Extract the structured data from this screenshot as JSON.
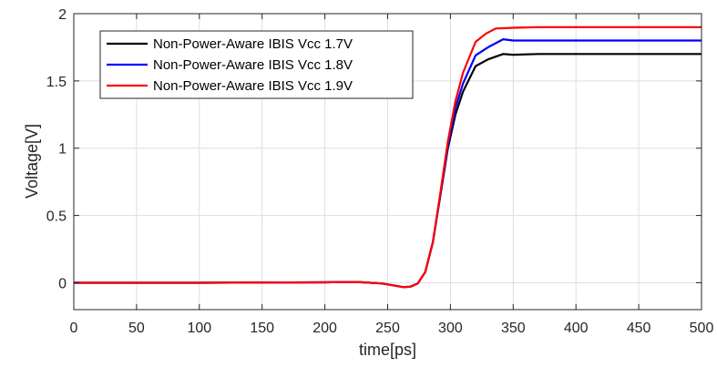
{
  "chart_data": {
    "type": "line",
    "title": "",
    "xlabel": "time[ps]",
    "ylabel": "Voltage[V]",
    "xlim": [
      0,
      500
    ],
    "ylim": [
      -0.2,
      2
    ],
    "xticks": [
      0,
      50,
      100,
      150,
      200,
      250,
      300,
      350,
      400,
      450,
      500
    ],
    "yticks": [
      0,
      0.5,
      1,
      1.5,
      2
    ],
    "xtick_labels": [
      "0",
      "50",
      "100",
      "150",
      "200",
      "250",
      "300",
      "350",
      "400",
      "450",
      "500"
    ],
    "ytick_labels": [
      "0",
      "0.5",
      "1",
      "1.5",
      "2"
    ],
    "grid": true,
    "legend_position": "top-left",
    "series": [
      {
        "name": "Non-Power-Aware IBIS Vcc 1.7V",
        "color": "#000000",
        "x": [
          0,
          100,
          200,
          225,
          245,
          255,
          262,
          268,
          274,
          280,
          286,
          292,
          298,
          304,
          310,
          320,
          330,
          342,
          350,
          370,
          400,
          450,
          500
        ],
        "y": [
          0,
          0,
          0.003,
          0.006,
          -0.005,
          -0.02,
          -0.032,
          -0.03,
          -0.005,
          0.08,
          0.3,
          0.65,
          1.0,
          1.25,
          1.42,
          1.61,
          1.66,
          1.7,
          1.695,
          1.7,
          1.7,
          1.7,
          1.7
        ]
      },
      {
        "name": "Non-Power-Aware IBIS Vcc 1.8V",
        "color": "#0000ff",
        "x": [
          0,
          100,
          200,
          225,
          245,
          255,
          262,
          268,
          274,
          280,
          286,
          292,
          298,
          304,
          310,
          320,
          330,
          342,
          350,
          370,
          400,
          450,
          500
        ],
        "y": [
          0,
          0,
          0.003,
          0.006,
          -0.005,
          -0.02,
          -0.032,
          -0.03,
          -0.005,
          0.08,
          0.3,
          0.66,
          1.02,
          1.3,
          1.48,
          1.69,
          1.75,
          1.81,
          1.8,
          1.8,
          1.8,
          1.8,
          1.8
        ]
      },
      {
        "name": "Non-Power-Aware IBIS Vcc 1.9V",
        "color": "#ff0000",
        "x": [
          0,
          100,
          200,
          225,
          245,
          255,
          262,
          268,
          274,
          280,
          286,
          292,
          298,
          304,
          310,
          320,
          328,
          336,
          350,
          370,
          400,
          450,
          500
        ],
        "y": [
          0,
          0,
          0.003,
          0.006,
          -0.005,
          -0.02,
          -0.032,
          -0.03,
          -0.005,
          0.08,
          0.3,
          0.67,
          1.05,
          1.35,
          1.56,
          1.79,
          1.85,
          1.89,
          1.895,
          1.9,
          1.9,
          1.9,
          1.9
        ]
      }
    ]
  }
}
